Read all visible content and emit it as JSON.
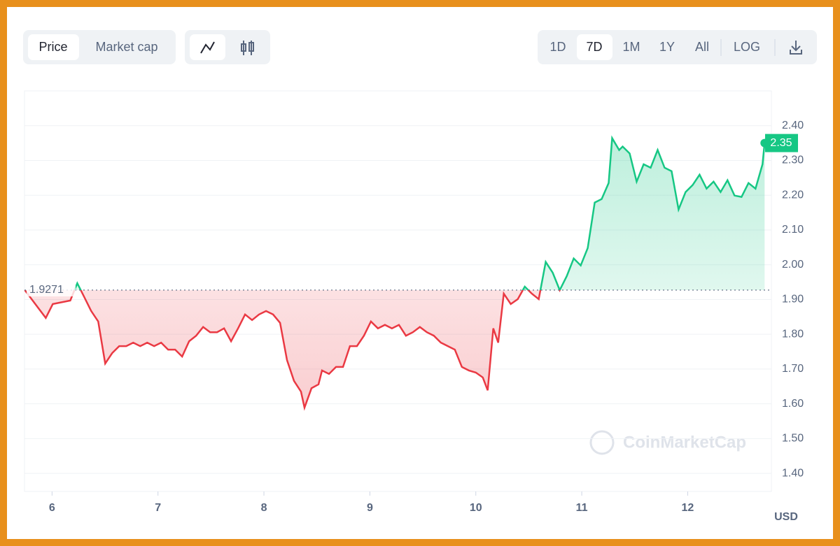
{
  "ui": {
    "chart_tabs": [
      "Price",
      "Market cap"
    ],
    "ranges": [
      "1D",
      "7D",
      "1M",
      "1Y",
      "All"
    ],
    "log": "LOG"
  },
  "chart_data": {
    "type": "line",
    "watermark": "CoinMarketCap",
    "y_unit": "USD",
    "up_color": "#16c784",
    "down_color": "#ea3943",
    "grid": true,
    "baseline": 1.9271,
    "xlim": [
      5.74,
      12.79
    ],
    "xticks": [
      6,
      7,
      8,
      9,
      10,
      11,
      12
    ],
    "ylim": [
      1.348,
      2.5
    ],
    "yticks": [
      {
        "value": 1.4,
        "label": "1.40"
      },
      {
        "value": 1.5,
        "label": "1.50"
      },
      {
        "value": 1.6,
        "label": "1.60"
      },
      {
        "value": 1.7,
        "label": "1.70"
      },
      {
        "value": 1.8,
        "label": "1.80"
      },
      {
        "value": 1.9,
        "label": "1.90"
      },
      {
        "value": 2.0,
        "label": "2.00"
      },
      {
        "value": 2.1,
        "label": "2.10"
      },
      {
        "value": 2.2,
        "label": "2.20"
      },
      {
        "value": 2.3,
        "label": "2.30"
      },
      {
        "value": 2.4,
        "label": "2.40"
      }
    ],
    "x": [
      5.743,
      5.842,
      5.941,
      6.007,
      6.106,
      6.172,
      6.238,
      6.304,
      6.37,
      6.436,
      6.502,
      6.568,
      6.634,
      6.7,
      6.766,
      6.832,
      6.898,
      6.964,
      7.03,
      7.096,
      7.162,
      7.228,
      7.294,
      7.36,
      7.426,
      7.492,
      7.558,
      7.624,
      7.69,
      7.756,
      7.822,
      7.888,
      7.954,
      8.02,
      8.086,
      8.152,
      8.218,
      8.284,
      8.35,
      8.383,
      8.449,
      8.515,
      8.548,
      8.614,
      8.68,
      8.746,
      8.812,
      8.878,
      8.944,
      9.01,
      9.076,
      9.142,
      9.208,
      9.274,
      9.34,
      9.406,
      9.472,
      9.538,
      9.604,
      9.67,
      9.736,
      9.802,
      9.868,
      9.934,
      10.0,
      10.066,
      10.112,
      10.165,
      10.211,
      10.264,
      10.33,
      10.396,
      10.462,
      10.528,
      10.594,
      10.66,
      10.726,
      10.792,
      10.858,
      10.924,
      10.99,
      11.056,
      11.122,
      11.188,
      11.254,
      11.287,
      11.353,
      11.386,
      11.452,
      11.518,
      11.584,
      11.65,
      11.716,
      11.782,
      11.848,
      11.914,
      11.98,
      12.046,
      12.112,
      12.178,
      12.244,
      12.31,
      12.376,
      12.442,
      12.508,
      12.574,
      12.64,
      12.706,
      12.726
    ],
    "values": [
      1.927,
      1.887,
      1.847,
      1.887,
      1.893,
      1.897,
      1.947,
      1.907,
      1.867,
      1.837,
      1.716,
      1.746,
      1.766,
      1.766,
      1.776,
      1.766,
      1.776,
      1.766,
      1.776,
      1.756,
      1.756,
      1.736,
      1.78,
      1.796,
      1.821,
      1.806,
      1.806,
      1.817,
      1.78,
      1.817,
      1.857,
      1.841,
      1.857,
      1.867,
      1.857,
      1.833,
      1.726,
      1.666,
      1.635,
      1.589,
      1.645,
      1.656,
      1.696,
      1.686,
      1.706,
      1.706,
      1.766,
      1.766,
      1.796,
      1.837,
      1.817,
      1.827,
      1.817,
      1.827,
      1.796,
      1.806,
      1.821,
      1.806,
      1.796,
      1.776,
      1.766,
      1.756,
      1.706,
      1.696,
      1.69,
      1.676,
      1.639,
      1.817,
      1.776,
      1.917,
      1.887,
      1.901,
      1.937,
      1.917,
      1.901,
      2.008,
      1.977,
      1.927,
      1.967,
      2.018,
      1.998,
      2.048,
      2.179,
      2.189,
      2.235,
      2.364,
      2.33,
      2.34,
      2.32,
      2.239,
      2.289,
      2.279,
      2.33,
      2.279,
      2.269,
      2.159,
      2.209,
      2.229,
      2.259,
      2.219,
      2.239,
      2.209,
      2.243,
      2.199,
      2.195,
      2.235,
      2.219,
      2.289,
      2.35
    ]
  }
}
